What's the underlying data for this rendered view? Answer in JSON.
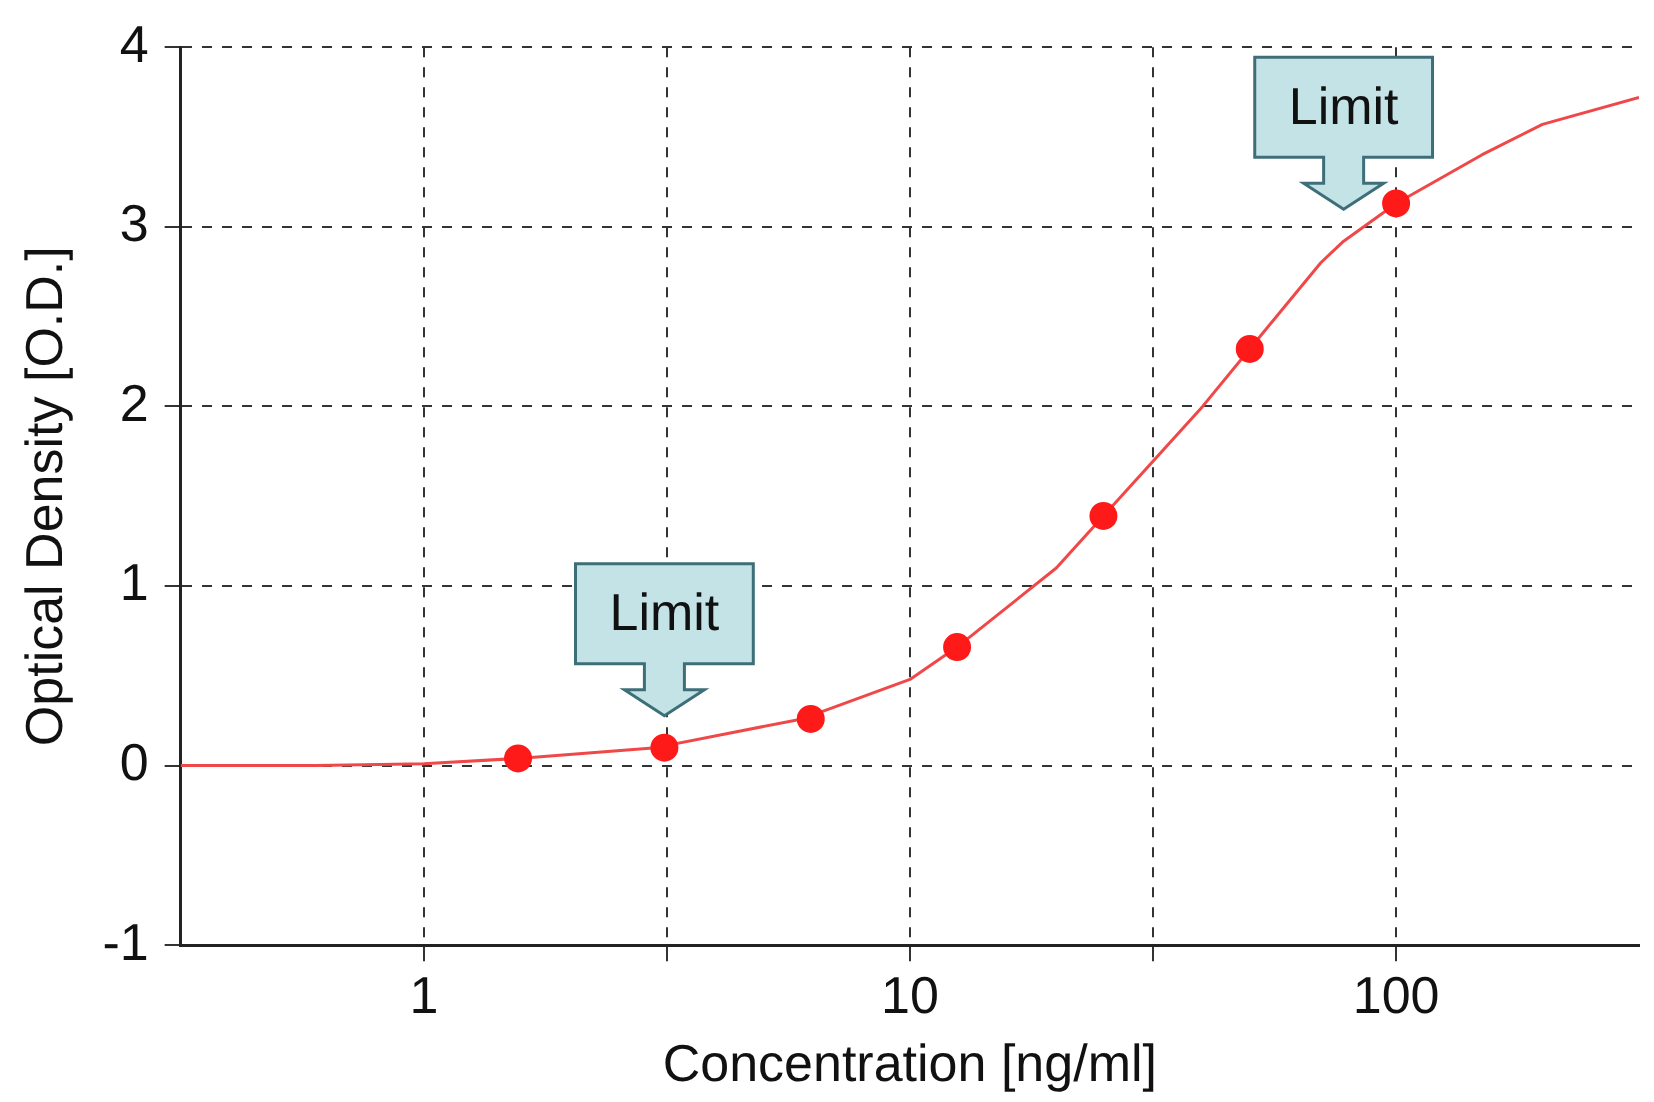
{
  "chart_data": {
    "type": "scatter",
    "xlabel": "Concentration [ng/ml]",
    "ylabel": "Optical Density [O.D.]",
    "log": "x",
    "grid": true,
    "xlim": [
      0.316,
      316
    ],
    "ylim": [
      -1,
      4
    ],
    "xticks": [
      1,
      {
        "value": 3.16,
        "label": null
      },
      10,
      {
        "value": 31.6,
        "label": null
      },
      100
    ],
    "yticks": [
      -1,
      0,
      1,
      2,
      3,
      4
    ],
    "series": [
      {
        "type": "line",
        "color": "#f04848",
        "x": [
          0.316,
          0.6,
          1,
          1.5625,
          3,
          6,
          10,
          12.5,
          20,
          25,
          40,
          50,
          70,
          78,
          100,
          150,
          200,
          316
        ],
        "values": [
          0,
          0,
          0.01,
          0.04,
          0.1,
          0.26,
          0.48,
          0.66,
          1.1,
          1.39,
          2.0,
          2.32,
          2.8,
          2.92,
          3.13,
          3.4,
          3.57,
          3.72
        ]
      },
      {
        "marker": "circle",
        "color": "#ff1a1a",
        "x": [
          1.5625,
          3.125,
          6.25,
          12.5,
          25,
          50,
          100
        ],
        "values": [
          0.04,
          0.1,
          0.26,
          0.66,
          1.39,
          2.32,
          3.13
        ]
      }
    ],
    "annotations": [
      {
        "text": "Limit",
        "x": 3.125,
        "y": 0.1
      },
      {
        "text": "Limit",
        "x": 78,
        "y": 2.92
      }
    ]
  }
}
